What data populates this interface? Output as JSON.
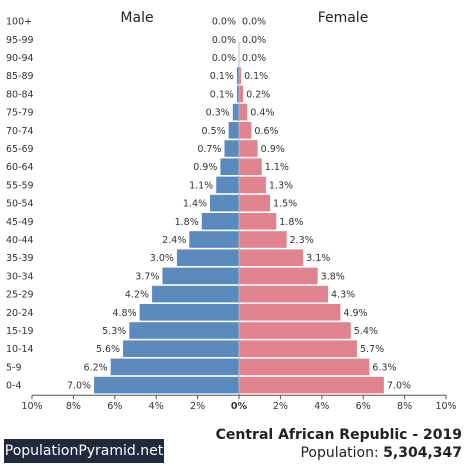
{
  "footer": {
    "brand": "PopulationPyramid.net",
    "country_year": "Central African Republic - 2019",
    "population_label": "Population:",
    "population_value": "5,304,347"
  },
  "chart_data": {
    "type": "bar",
    "orientation": "horizontal",
    "layout": "population-pyramid",
    "title": "",
    "xlabel": "",
    "ylabel": "",
    "categories": [
      "100+",
      "95-99",
      "90-94",
      "85-89",
      "80-84",
      "75-79",
      "70-74",
      "65-69",
      "60-64",
      "55-59",
      "50-54",
      "45-49",
      "40-44",
      "35-39",
      "30-34",
      "25-29",
      "20-24",
      "15-19",
      "10-14",
      "5-9",
      "0-4"
    ],
    "series": [
      {
        "name": "Male",
        "color": "#5b8bbd",
        "values": [
          0.0,
          0.0,
          0.0,
          0.1,
          0.1,
          0.3,
          0.5,
          0.7,
          0.9,
          1.1,
          1.4,
          1.8,
          2.4,
          3.0,
          3.7,
          4.2,
          4.8,
          5.3,
          5.6,
          6.2,
          7.0
        ],
        "labels": [
          "0.0%",
          "0.0%",
          "0.0%",
          "0.1%",
          "0.1%",
          "0.3%",
          "0.5%",
          "0.7%",
          "0.9%",
          "1.1%",
          "1.4%",
          "1.8%",
          "2.4%",
          "3.0%",
          "3.7%",
          "4.2%",
          "4.8%",
          "5.3%",
          "5.6%",
          "6.2%",
          "7.0%"
        ]
      },
      {
        "name": "Female",
        "color": "#e0838f",
        "values": [
          0.0,
          0.0,
          0.0,
          0.1,
          0.2,
          0.4,
          0.6,
          0.9,
          1.1,
          1.3,
          1.5,
          1.8,
          2.3,
          3.1,
          3.8,
          4.3,
          4.9,
          5.4,
          5.7,
          6.3,
          7.0
        ],
        "labels": [
          "0.0%",
          "0.0%",
          "0.0%",
          "0.1%",
          "0.2%",
          "0.4%",
          "0.6%",
          "0.9%",
          "1.1%",
          "1.3%",
          "1.5%",
          "1.8%",
          "2.3%",
          "3.1%",
          "3.8%",
          "4.3%",
          "4.9%",
          "5.4%",
          "5.7%",
          "6.3%",
          "7.0%"
        ]
      }
    ],
    "xlim": [
      -10,
      10
    ],
    "x_ticks": [
      "10%",
      "8%",
      "6%",
      "4%",
      "2%",
      "0%",
      "2%",
      "4%",
      "6%",
      "8%",
      "10%"
    ],
    "grid": false,
    "legend": "top"
  }
}
